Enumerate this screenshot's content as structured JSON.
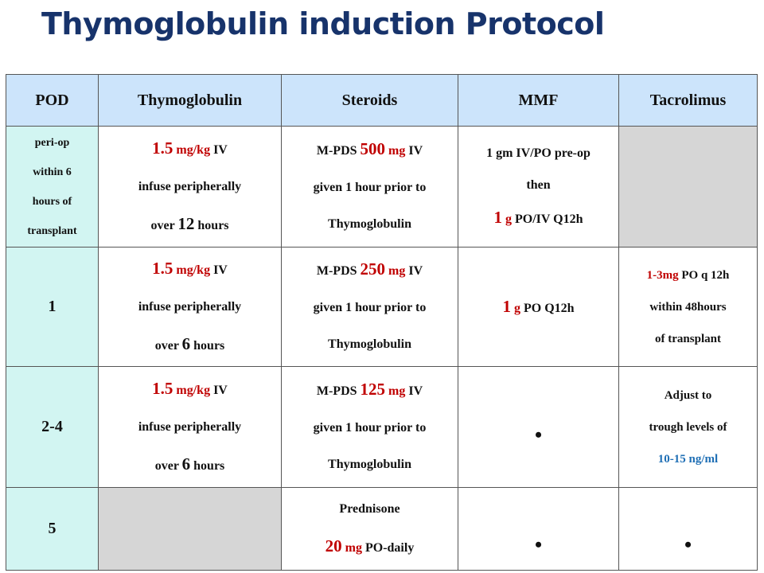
{
  "title": "Thymoglobulin induction Protocol",
  "headers": [
    "POD",
    "Thymoglobulin",
    "Steroids",
    "MMF",
    "Tacrolimus"
  ],
  "rows": [
    {
      "pod": [
        "peri-op",
        "within 6",
        "hours of",
        "transplant"
      ],
      "thymo": {
        "dose": "1.5",
        "unit": "mg/kg",
        "route": "IV",
        "line2": "infuse peripherally",
        "over": "over",
        "hours_num": "12",
        "hours": "hours"
      },
      "steroid": {
        "drug": "M-PDS",
        "dose": "500",
        "unit": "mg",
        "route": "IV",
        "line2": "given 1 hour prior to",
        "line3": "Thymoglobulin"
      },
      "mmf": {
        "line1": "1 gm IV/PO pre-op",
        "line2": "then",
        "dose": "1",
        "unit": "g",
        "rest": "PO/IV Q12h"
      }
    },
    {
      "pod": "1",
      "thymo": {
        "dose": "1.5",
        "unit": "mg/kg",
        "route": "IV",
        "line2": "infuse peripherally",
        "over": "over",
        "hours_num": "6",
        "hours": "hours"
      },
      "steroid": {
        "drug": "M-PDS",
        "dose": "250",
        "unit": "mg",
        "route": "IV",
        "line2": "given 1 hour prior to",
        "line3": "Thymoglobulin"
      },
      "mmf": {
        "dose": "1",
        "unit": "g",
        "rest": "PO Q12h"
      },
      "tac": {
        "dose": "1-3mg",
        "rest": "PO q 12h",
        "line2": "within 48hours",
        "line3": "of transplant"
      }
    },
    {
      "pod": "2-4",
      "thymo": {
        "dose": "1.5",
        "unit": "mg/kg",
        "route": "IV",
        "line2": "infuse peripherally",
        "over": "over",
        "hours_num": "6",
        "hours": "hours"
      },
      "steroid": {
        "drug": "M-PDS",
        "dose": "125",
        "unit": "mg",
        "route": "IV",
        "line2": "given 1 hour prior to",
        "line3": "Thymoglobulin"
      },
      "mmf": {
        "bullet": "•"
      },
      "tac": {
        "line1": "Adjust to",
        "line2": "trough levels of",
        "line3": "10-15 ng/ml"
      }
    },
    {
      "pod": "5",
      "steroid": {
        "drug": "Prednisone",
        "dose": "20",
        "unit": "mg",
        "rest": "PO-daily"
      },
      "mmf": {
        "bullet": "•"
      },
      "tac": {
        "bullet": "•"
      }
    }
  ]
}
